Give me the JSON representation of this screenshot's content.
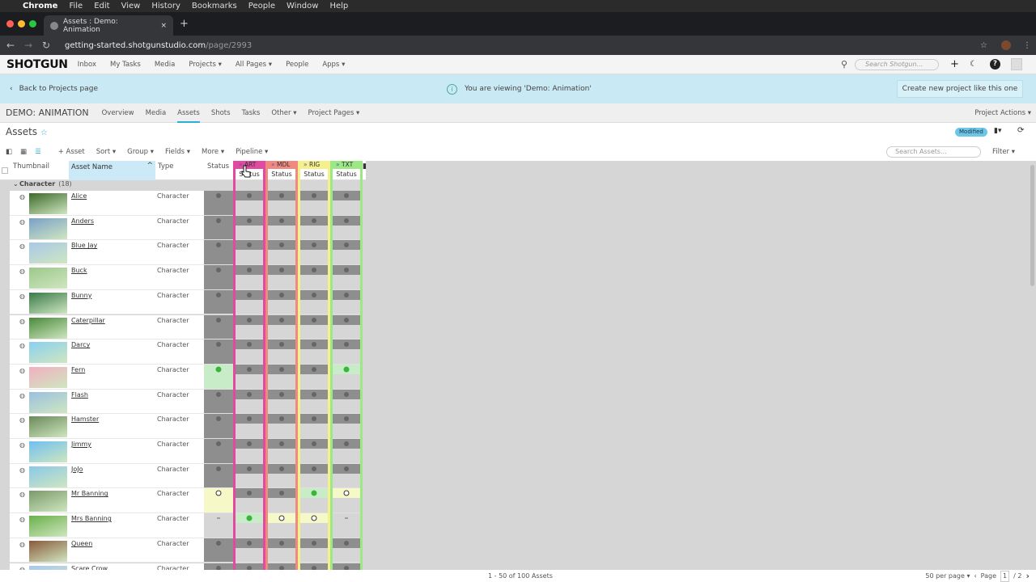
{
  "os_menu": {
    "items": [
      "Chrome",
      "File",
      "Edit",
      "View",
      "History",
      "Bookmarks",
      "People",
      "Window",
      "Help"
    ]
  },
  "browser": {
    "tab_title": "Assets : Demo: Animation",
    "url_host": "getting-started.shotgunstudio.com",
    "url_path": "/page/2993"
  },
  "app_nav": {
    "logo": "SHOTGUN",
    "items": [
      "Inbox",
      "My Tasks",
      "Media",
      "Projects ▾",
      "All Pages ▾",
      "People",
      "Apps ▾"
    ],
    "search_placeholder": "Search Shotgun..."
  },
  "banner": {
    "back": "Back to Projects page",
    "message": "You are viewing 'Demo: Animation'",
    "create": "Create new project like this one"
  },
  "project_nav": {
    "name": "DEMO: ANIMATION",
    "items": [
      "Overview",
      "Media",
      "Assets",
      "Shots",
      "Tasks",
      "Other ▾",
      "Project Pages ▾"
    ],
    "active": "Assets",
    "actions": "Project Actions ▾"
  },
  "page": {
    "title": "Assets",
    "badge": "Modified"
  },
  "toolbar": {
    "items": [
      "+ Asset",
      "Sort ▾",
      "Group ▾",
      "Fields ▾",
      "More ▾",
      "Pipeline ▾"
    ],
    "search_placeholder": "Search Assets...",
    "filter": "Filter ▾"
  },
  "columns": {
    "thumbnail": "Thumbnail",
    "name": "Asset Name",
    "type": "Type",
    "status": "Status",
    "steps": [
      {
        "code": "ART",
        "sub": "Status",
        "color": "#e24aa0"
      },
      {
        "code": "MDL",
        "sub": "Status",
        "color": "#f08a80"
      },
      {
        "code": "RIG",
        "sub": "Status",
        "color": "#f4f08a"
      },
      {
        "code": "TXT",
        "sub": "Status",
        "color": "#9ce884"
      }
    ]
  },
  "group": {
    "label": "Character",
    "count": "(18)"
  },
  "rows": [
    {
      "name": "Alice",
      "type": "Character",
      "s": [
        "wtg",
        "wtg",
        "wtg",
        "wtg",
        "wtg"
      ]
    },
    {
      "name": "Anders",
      "type": "Character",
      "s": [
        "wtg",
        "wtg",
        "wtg",
        "wtg",
        "wtg"
      ]
    },
    {
      "name": "Blue Jay",
      "type": "Character",
      "s": [
        "wtg",
        "wtg",
        "wtg",
        "wtg",
        "wtg"
      ]
    },
    {
      "name": "Buck",
      "type": "Character",
      "s": [
        "wtg",
        "wtg",
        "wtg",
        "wtg",
        "wtg"
      ]
    },
    {
      "name": "Bunny",
      "type": "Character",
      "s": [
        "wtg",
        "wtg",
        "wtg",
        "wtg",
        "wtg"
      ]
    },
    {
      "name": "Caterpillar",
      "type": "Character",
      "s": [
        "wtg",
        "wtg",
        "wtg",
        "wtg",
        "wtg"
      ]
    },
    {
      "name": "Darcy",
      "type": "Character",
      "s": [
        "wtg",
        "wtg",
        "wtg",
        "wtg",
        "wtg"
      ]
    },
    {
      "name": "Fern",
      "type": "Character",
      "s": [
        "ip",
        "wtg",
        "wtg",
        "wtg",
        "ip"
      ]
    },
    {
      "name": "Flash",
      "type": "Character",
      "s": [
        "wtg",
        "wtg",
        "wtg",
        "wtg",
        "wtg"
      ]
    },
    {
      "name": "Hamster",
      "type": "Character",
      "s": [
        "wtg",
        "wtg",
        "wtg",
        "wtg",
        "wtg"
      ]
    },
    {
      "name": "Jimmy",
      "type": "Character",
      "s": [
        "wtg",
        "wtg",
        "wtg",
        "wtg",
        "wtg"
      ]
    },
    {
      "name": "JoJo",
      "type": "Character",
      "s": [
        "wtg",
        "wtg",
        "wtg",
        "wtg",
        "wtg"
      ]
    },
    {
      "name": "Mr Banning",
      "type": "Character",
      "s": [
        "rdy",
        "wtg",
        "wtg",
        "ip",
        "rdy"
      ]
    },
    {
      "name": "Mrs Banning",
      "type": "Character",
      "s": [
        "na",
        "ip",
        "rdy",
        "rdy",
        "na"
      ]
    },
    {
      "name": "Queen",
      "type": "Character",
      "s": [
        "wtg",
        "wtg",
        "wtg",
        "wtg",
        "wtg"
      ]
    },
    {
      "name": "Scare Crow",
      "type": "Character",
      "s": [
        "wtg",
        "wtg",
        "wtg",
        "wtg",
        "wtg"
      ]
    }
  ],
  "footer": {
    "count": "1 - 50 of 100 Assets",
    "per_page": "50 per page ▾",
    "page_label": "Page",
    "page": "1",
    "total": "/ 2"
  },
  "colors": {
    "accent": "#2ab0d5",
    "banner": "#c9e9f4",
    "in_progress": "#3cb43c"
  }
}
